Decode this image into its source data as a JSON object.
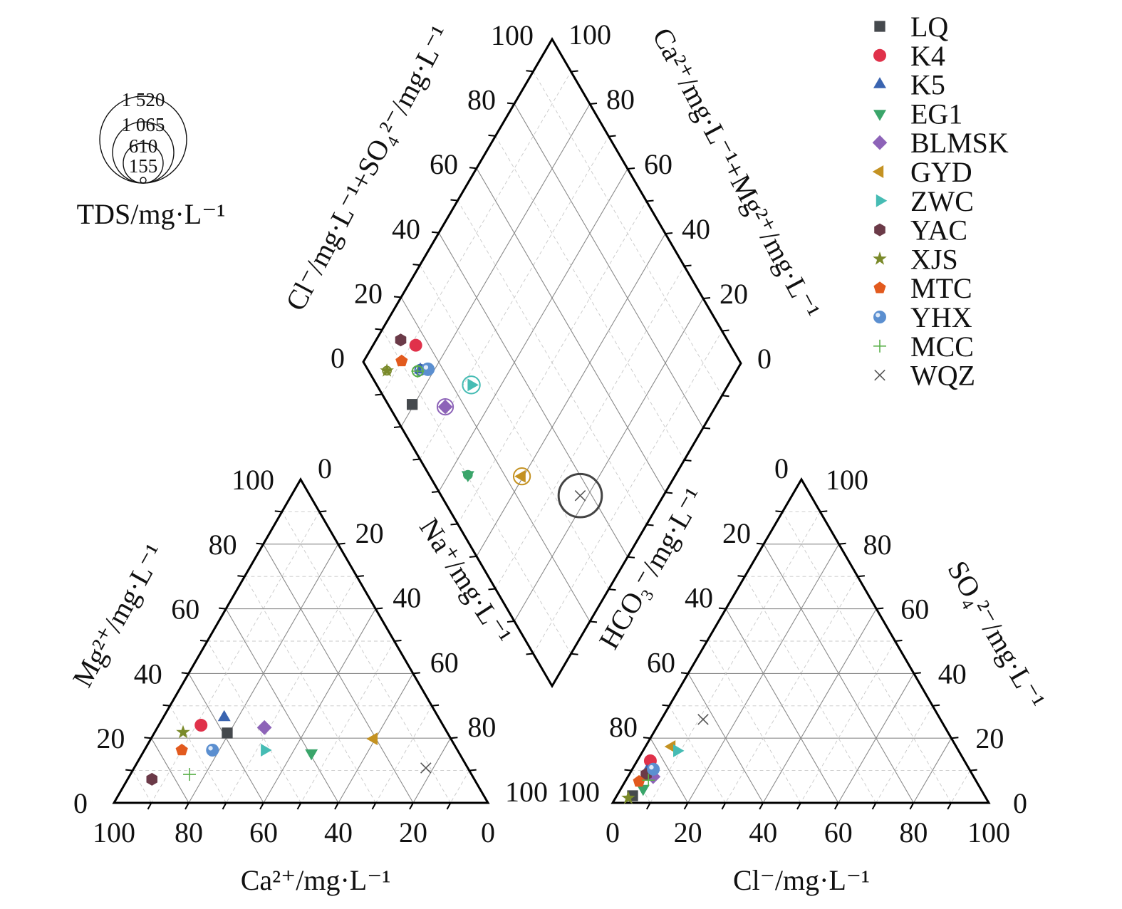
{
  "chart_data": {
    "type": "scatter",
    "subtype": "piper-diagram",
    "cation_triangle": {
      "bottom_axis_title": "Ca²⁺/mg·L⁻¹",
      "left_axis_title": "Mg²⁺/mg·L⁻¹",
      "right_axis_title": "Na⁺/mg·L⁻¹",
      "bottom_ticks": [
        "0",
        "20",
        "40",
        "60",
        "80",
        "100"
      ],
      "left_ticks": [
        "0",
        "20",
        "40",
        "60",
        "80",
        "100"
      ],
      "right_ticks": [
        "0",
        "20",
        "40",
        "60",
        "80",
        "100"
      ]
    },
    "anion_triangle": {
      "bottom_axis_title": "Cl⁻/mg·L⁻¹",
      "left_axis_title": "HCO₃⁻/mg·L⁻¹",
      "right_axis_title": "SO₄²⁻/mg·L⁻¹",
      "bottom_ticks": [
        "0",
        "20",
        "40",
        "60",
        "80",
        "100"
      ],
      "left_ticks": [
        "0",
        "20",
        "40",
        "60",
        "80",
        "100"
      ],
      "right_ticks": [
        "0",
        "20",
        "40",
        "60",
        "80",
        "100"
      ]
    },
    "diamond": {
      "left_axis_title": "Cl⁻/mg·L⁻¹+SO₄²⁻/mg·L⁻¹",
      "right_axis_title": "Ca²⁺/mg·L⁻¹+Mg²⁺/mg·L⁻¹",
      "left_ticks": [
        "0",
        "20",
        "40",
        "60",
        "80",
        "100"
      ],
      "right_ticks": [
        "0",
        "20",
        "40",
        "60",
        "80",
        "100"
      ]
    },
    "tds_legend": {
      "title": "TDS/mg·L⁻¹",
      "levels": [
        {
          "label": "1 520",
          "value": 1520
        },
        {
          "label": "1 065",
          "value": 1065
        },
        {
          "label": "610",
          "value": 610
        },
        {
          "label": "155",
          "value": 155
        }
      ]
    },
    "legend_position": "top-right",
    "series": [
      {
        "name": "LQ",
        "marker": "square",
        "color": "#45494d",
        "Ca": 58.9,
        "Mg": 21.6,
        "Na": 19.5,
        "Cl": 4.2,
        "SO4": 2.2,
        "HCO3": 93.6,
        "TDS": 190
      },
      {
        "name": "K4",
        "marker": "circle",
        "color": "#e0314a",
        "Ca": 64.7,
        "Mg": 24.0,
        "Na": 11.3,
        "Cl": 3.5,
        "SO4": 13.0,
        "HCO3": 83.5,
        "TDS": 190
      },
      {
        "name": "K5",
        "marker": "triangle-up",
        "color": "#3a64b0",
        "Ca": 57.3,
        "Mg": 26.4,
        "Na": 16.3,
        "Cl": 4.2,
        "SO4": 9.7,
        "HCO3": 86.1,
        "TDS": 220
      },
      {
        "name": "EG1",
        "marker": "triangle-down",
        "color": "#3aa56a",
        "Ca": 39.5,
        "Mg": 15.4,
        "Na": 45.1,
        "Cl": 5.9,
        "SO4": 4.4,
        "HCO3": 89.7,
        "TDS": 190
      },
      {
        "name": "BLMSK",
        "marker": "diamond",
        "color": "#8d63b8",
        "Ca": 48.1,
        "Mg": 23.3,
        "Na": 28.6,
        "Cl": 6.7,
        "SO4": 8.1,
        "HCO3": 85.2,
        "TDS": 290
      },
      {
        "name": "GYD",
        "marker": "triangle-left",
        "color": "#c49222",
        "Ca": 20.6,
        "Mg": 19.8,
        "Na": 59.6,
        "Cl": 7.0,
        "SO4": 17.4,
        "HCO3": 75.6,
        "TDS": 300
      },
      {
        "name": "ZWC",
        "marker": "triangle-right",
        "color": "#46bcb4",
        "Ca": 51.6,
        "Mg": 16.3,
        "Na": 32.1,
        "Cl": 9.0,
        "SO4": 16.1,
        "HCO3": 74.9,
        "TDS": 310
      },
      {
        "name": "YAC",
        "marker": "hexagon",
        "color": "#6b3a48",
        "Ca": 86.2,
        "Mg": 7.3,
        "Na": 6.5,
        "Cl": 4.5,
        "SO4": 8.8,
        "HCO3": 86.7,
        "TDS": 190
      },
      {
        "name": "XJS",
        "marker": "star",
        "color": "#7a8a2a",
        "Ca": 70.6,
        "Mg": 21.8,
        "Na": 7.6,
        "Cl": 3.4,
        "SO4": 1.5,
        "HCO3": 95.1,
        "TDS": 190
      },
      {
        "name": "MTC",
        "marker": "pentagon",
        "color": "#e25a1e",
        "Ca": 73.7,
        "Mg": 16.3,
        "Na": 10.0,
        "Cl": 3.7,
        "SO4": 6.6,
        "HCO3": 89.7,
        "TDS": 190
      },
      {
        "name": "YHX",
        "marker": "sphere",
        "color": "#5b8fd0",
        "Ca": 65.5,
        "Mg": 16.3,
        "Na": 18.2,
        "Cl": 5.6,
        "SO4": 10.4,
        "HCO3": 84.0,
        "TDS": 240
      },
      {
        "name": "MCC",
        "marker": "plus",
        "color": "#5ab04a",
        "Ca": 75.4,
        "Mg": 8.8,
        "Na": 15.8,
        "Cl": 6.0,
        "SO4": 7.0,
        "HCO3": 87.0,
        "TDS": 220
      },
      {
        "name": "WQZ",
        "marker": "x",
        "color": "#555555",
        "Ca": 11.2,
        "Mg": 10.8,
        "Na": 78.0,
        "Cl": 11.1,
        "SO4": 25.8,
        "HCO3": 63.1,
        "TDS": 680
      }
    ]
  }
}
